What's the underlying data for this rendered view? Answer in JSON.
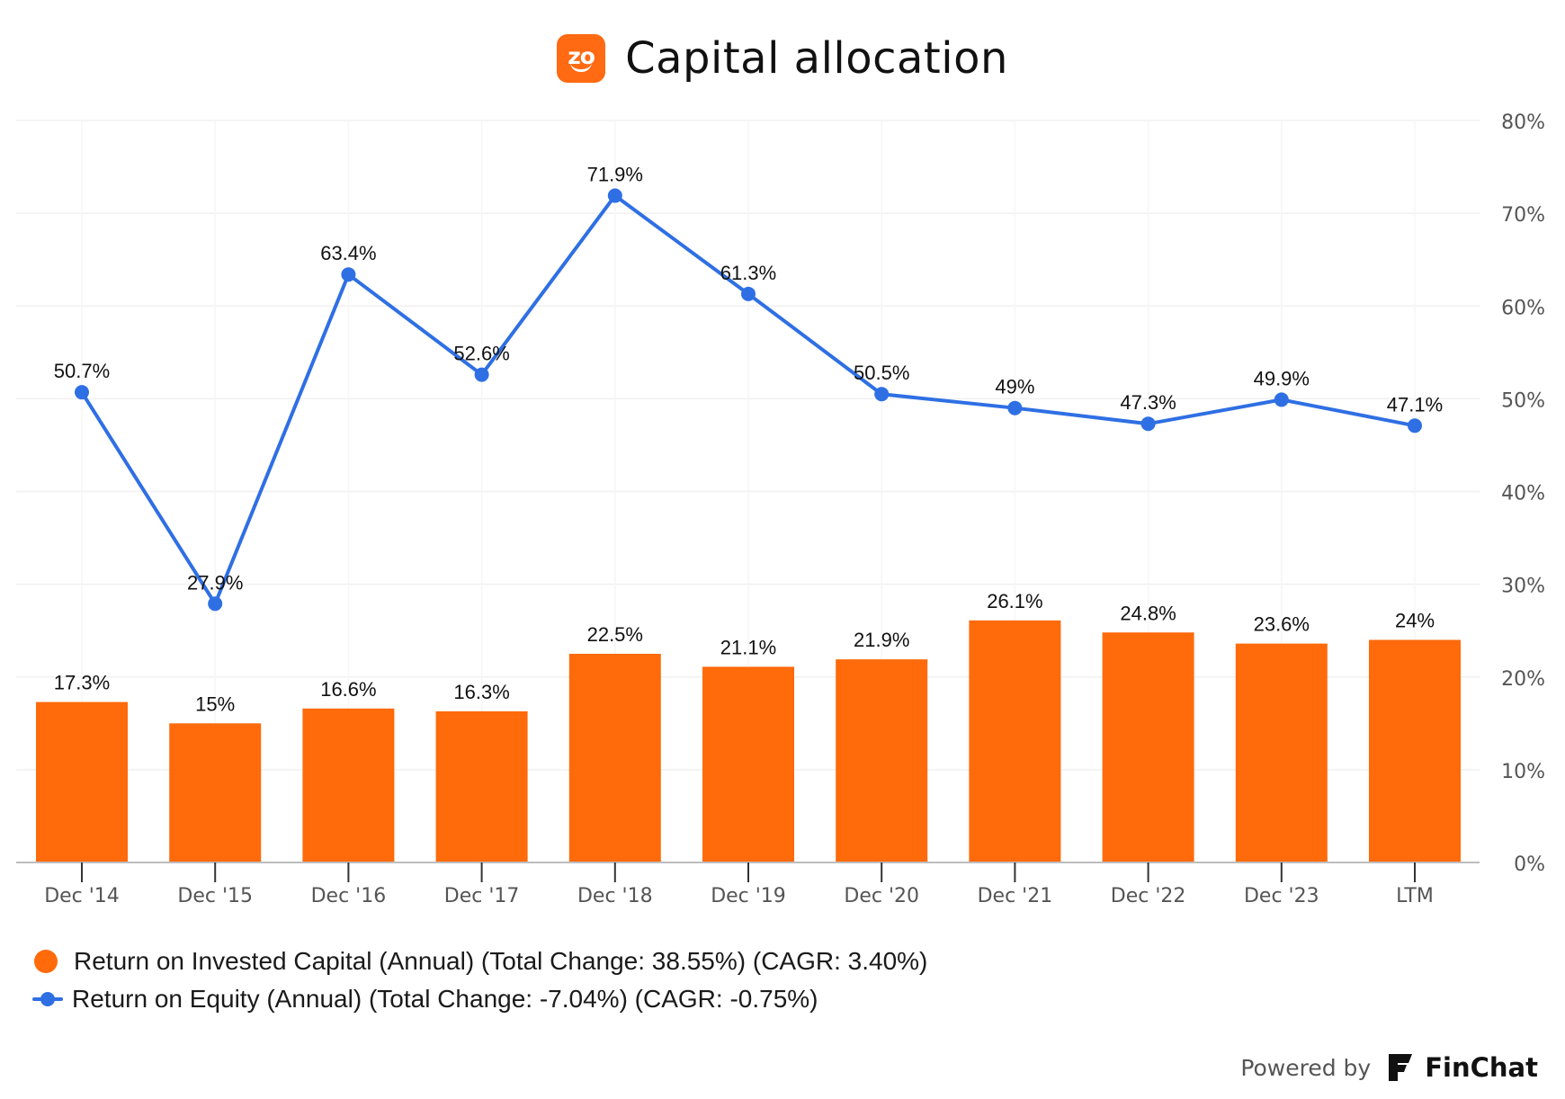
{
  "header": {
    "logo_text": "zo",
    "title": "Capital allocation"
  },
  "chart_data": {
    "type": "bar",
    "categories": [
      "Dec '14",
      "Dec '15",
      "Dec '16",
      "Dec '17",
      "Dec '18",
      "Dec '19",
      "Dec '20",
      "Dec '21",
      "Dec '22",
      "Dec '23",
      "LTM"
    ],
    "series": [
      {
        "name": "Return on Invested Capital (Annual) (Total Change: 38.55%) (CAGR: 3.40%)",
        "type": "bar",
        "color": "#ff6a0a",
        "values": [
          17.3,
          15,
          16.6,
          16.3,
          22.5,
          21.1,
          21.9,
          26.1,
          24.8,
          23.6,
          24
        ],
        "labels": [
          "17.3%",
          "15%",
          "16.6%",
          "16.3%",
          "22.5%",
          "21.1%",
          "21.9%",
          "26.1%",
          "24.8%",
          "23.6%",
          "24%"
        ]
      },
      {
        "name": "Return on Equity (Annual) (Total Change: -7.04%) (CAGR: -0.75%)",
        "type": "line",
        "color": "#2f6fe4",
        "values": [
          50.7,
          27.9,
          63.4,
          52.6,
          71.9,
          61.3,
          50.5,
          49,
          47.3,
          49.9,
          47.1
        ],
        "labels": [
          "50.7%",
          "27.9%",
          "63.4%",
          "52.6%",
          "71.9%",
          "61.3%",
          "50.5%",
          "49%",
          "47.3%",
          "49.9%",
          "47.1%"
        ]
      }
    ],
    "yaxis": {
      "position": "right",
      "ylim": [
        0,
        80
      ],
      "ticks": [
        0,
        10,
        20,
        30,
        40,
        50,
        60,
        70,
        80
      ],
      "tick_labels": [
        "0%",
        "10%",
        "20%",
        "30%",
        "40%",
        "50%",
        "60%",
        "70%",
        "80%"
      ]
    },
    "grid": true,
    "legend": "bottom-left"
  },
  "legend": {
    "items": [
      {
        "label": "Return on Invested Capital (Annual) (Total Change: 38.55%) (CAGR: 3.40%)",
        "color": "#ff6a0a"
      },
      {
        "label": "Return on Equity (Annual) (Total Change: -7.04%) (CAGR: -0.75%)",
        "color": "#2f6fe4"
      }
    ]
  },
  "footer": {
    "powered_by": "Powered by",
    "brand": "FinChat"
  }
}
